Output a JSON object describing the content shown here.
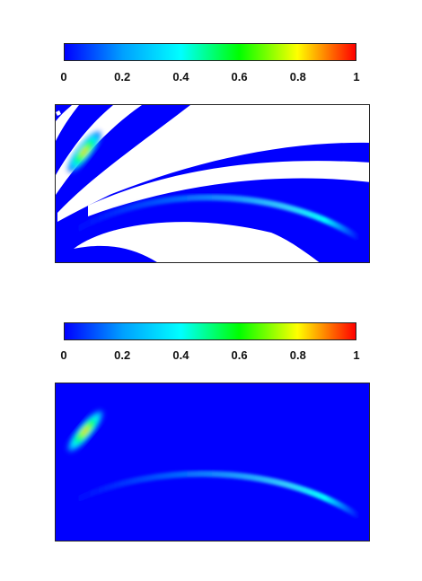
{
  "chart_data": [
    {
      "type": "heatmap",
      "colorbar": {
        "ticks": [
          0,
          0.2,
          0.4,
          0.6,
          0.8,
          1
        ],
        "tick_labels": [
          "0",
          "0.2",
          "0.4",
          "0.6",
          "0.8",
          "1"
        ],
        "range": [
          0,
          1
        ],
        "colors": [
          "#0000ff",
          "#00a0ff",
          "#00ffff",
          "#00ff00",
          "#ffff00",
          "#ff0000"
        ]
      },
      "masked_color": "#ffffff",
      "features": [
        {
          "kind": "hotspot",
          "peak_value": 0.9
        },
        {
          "kind": "arc",
          "peak_value": 0.3
        }
      ]
    },
    {
      "type": "heatmap",
      "colorbar": {
        "ticks": [
          0,
          0.2,
          0.4,
          0.6,
          0.8,
          1
        ],
        "tick_labels": [
          "0",
          "0.2",
          "0.4",
          "0.6",
          "0.8",
          "1"
        ],
        "range": [
          0,
          1
        ],
        "colors": [
          "#0000ff",
          "#00a0ff",
          "#00ffff",
          "#00ff00",
          "#ffff00",
          "#ff0000"
        ]
      },
      "features": [
        {
          "kind": "hotspot",
          "peak_value": 0.9
        },
        {
          "kind": "arc",
          "peak_value": 0.3
        }
      ]
    }
  ]
}
